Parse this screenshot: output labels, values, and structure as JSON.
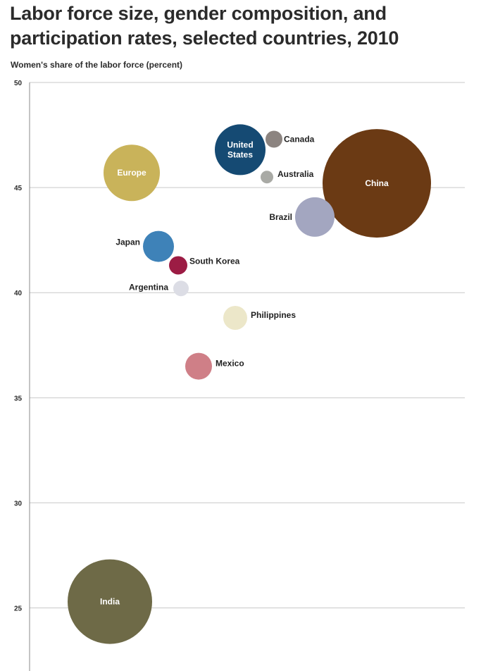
{
  "chart_data": {
    "type": "scatter",
    "title": "Labor force size, gender composition, and participation rates, selected countries, 2010",
    "ylabel": "Women's share of the labor force (percent)",
    "xlabel": "",
    "ylim": [
      22,
      50
    ],
    "yticks": [
      50,
      45,
      40,
      35,
      30,
      25
    ],
    "grid": true,
    "points": [
      {
        "name": "Europe",
        "label_lines": [
          "Europe"
        ],
        "y": 45.7,
        "size_rank": 0.58,
        "color": "#c9b35a",
        "label_inside": true
      },
      {
        "name": "United States",
        "label_lines": [
          "United",
          "States"
        ],
        "y": 46.8,
        "size_rank": 0.5,
        "color": "#154a73",
        "label_inside": true
      },
      {
        "name": "Canada",
        "label_lines": [
          "Canada"
        ],
        "y": 47.3,
        "size_rank": 0.17,
        "color": "#8c8480",
        "label_inside": false
      },
      {
        "name": "Australia",
        "label_lines": [
          "Australia"
        ],
        "y": 45.5,
        "size_rank": 0.12,
        "color": "#a9aaa5",
        "label_inside": false
      },
      {
        "name": "China",
        "label_lines": [
          "China"
        ],
        "y": 45.2,
        "size_rank": 1.0,
        "color": "#6b3a14",
        "label_inside": true
      },
      {
        "name": "Brazil",
        "label_lines": [
          "Brazil"
        ],
        "y": 43.6,
        "size_rank": 0.4,
        "color": "#a3a6c0",
        "label_inside": false
      },
      {
        "name": "Japan",
        "label_lines": [
          "Japan"
        ],
        "y": 42.2,
        "size_rank": 0.3,
        "color": "#3e82b8",
        "label_inside": false
      },
      {
        "name": "South Korea",
        "label_lines": [
          "South Korea"
        ],
        "y": 41.3,
        "size_rank": 0.18,
        "color": "#9c1c44",
        "label_inside": false
      },
      {
        "name": "Argentina",
        "label_lines": [
          "Argentina"
        ],
        "y": 40.2,
        "size_rank": 0.15,
        "color": "#dcdde5",
        "label_inside": false
      },
      {
        "name": "Philippines",
        "label_lines": [
          "Philippines"
        ],
        "y": 38.8,
        "size_rank": 0.23,
        "color": "#ece7c9",
        "label_inside": false
      },
      {
        "name": "Mexico",
        "label_lines": [
          "Mexico"
        ],
        "y": 36.5,
        "size_rank": 0.26,
        "color": "#cf7f87",
        "label_inside": false
      },
      {
        "name": "India",
        "label_lines": [
          "India"
        ],
        "y": 25.3,
        "size_rank": 0.8,
        "color": "#6e6a47",
        "label_inside": true
      }
    ]
  }
}
